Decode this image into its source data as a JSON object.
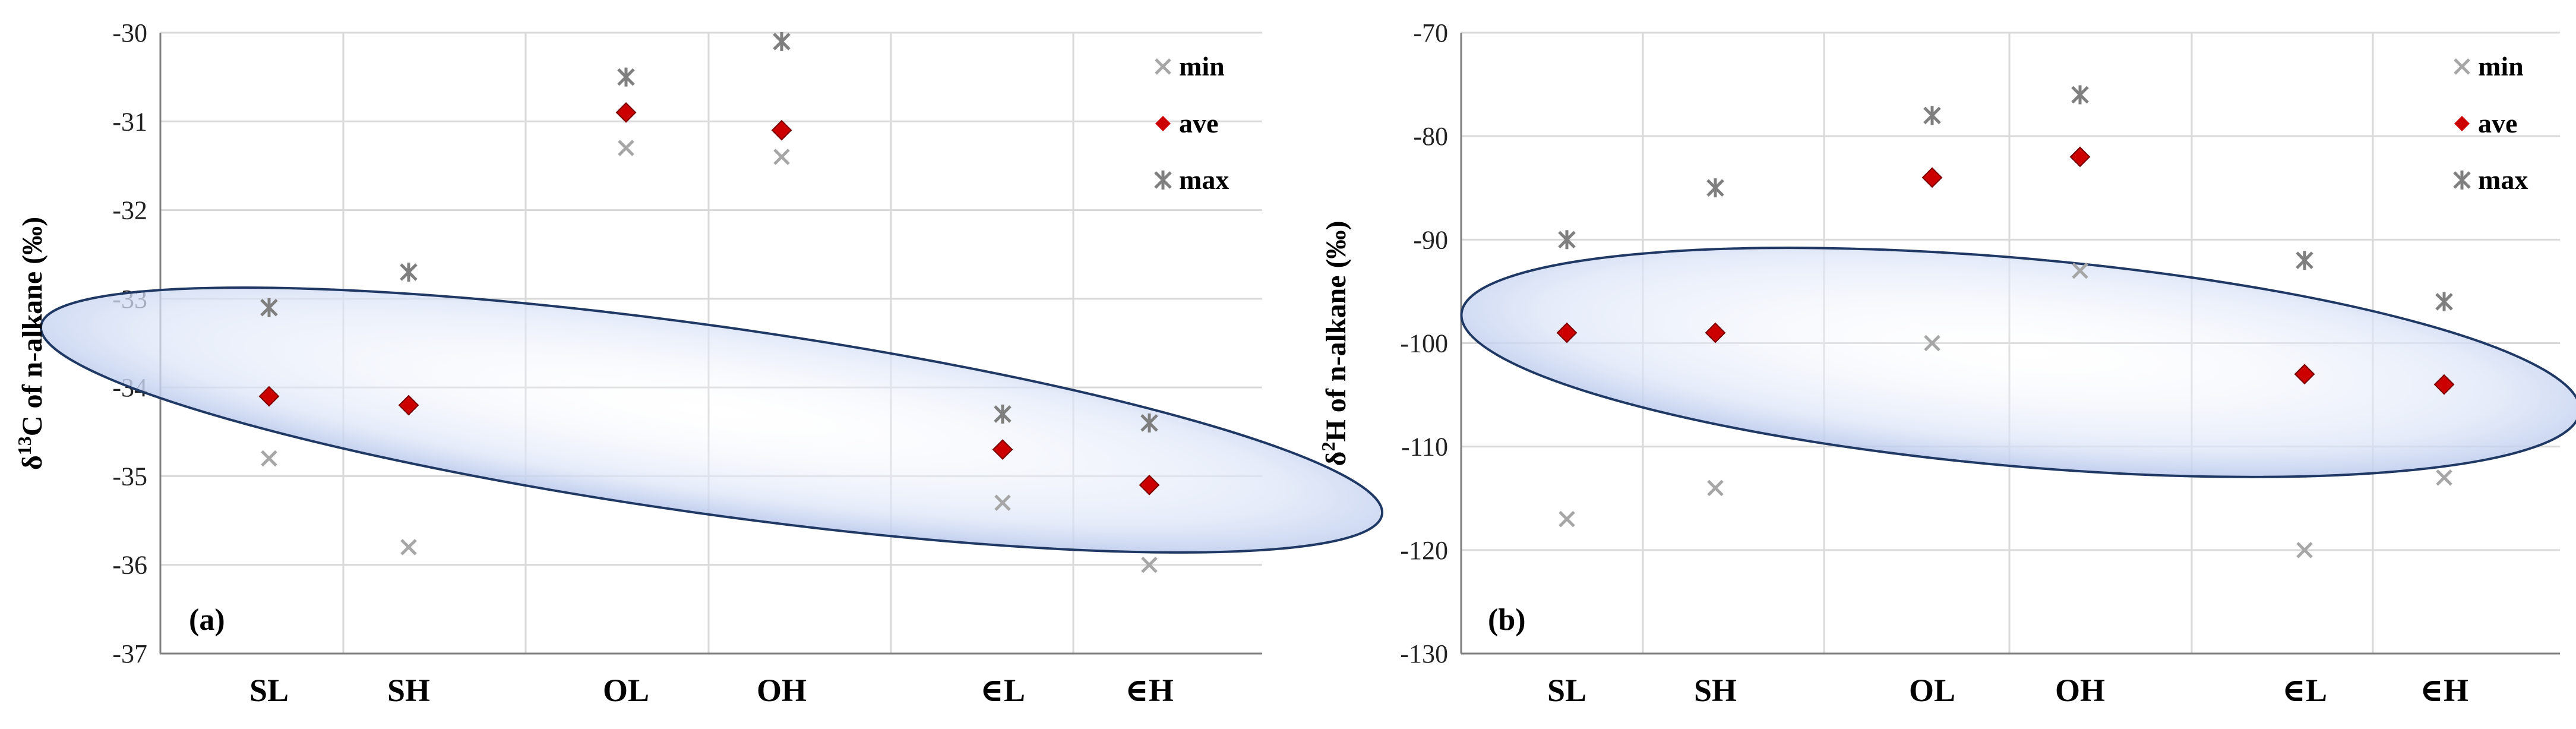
{
  "chart_data": [
    {
      "type": "scatter",
      "panel_label": "(a)",
      "ylabel": "δ13C of n-alkane (‰)",
      "ylabel_parts": {
        "pre": "δ",
        "sup": "13",
        "post": "C of n-alkane (‰)"
      },
      "ylim": [
        -37,
        -30
      ],
      "yticks": [
        "-30",
        "-31",
        "-32",
        "-33",
        "-34",
        "-35",
        "-36",
        "-37"
      ],
      "ytick_values": [
        -30,
        -31,
        -32,
        -33,
        -34,
        -35,
        -36,
        -37
      ],
      "categories": [
        "SL",
        "SH",
        "OL",
        "OH",
        "∈L",
        "∈H"
      ],
      "series": [
        {
          "name": "min",
          "values": [
            -34.8,
            -35.8,
            -31.3,
            -31.4,
            -35.3,
            -36.0
          ]
        },
        {
          "name": "ave",
          "values": [
            -34.1,
            -34.2,
            -30.9,
            -31.1,
            -34.7,
            -35.1
          ]
        },
        {
          "name": "max",
          "values": [
            -33.1,
            -32.7,
            -30.5,
            -30.1,
            -34.3,
            -34.4
          ]
        }
      ],
      "legend": [
        "min",
        "ave",
        "max"
      ],
      "colors": {
        "min": "#a6a6a6",
        "ave": "#cc0000",
        "max": "#7f7f7f",
        "ellipse": "#b8c8ee"
      }
    },
    {
      "type": "scatter",
      "panel_label": "(b)",
      "ylabel": "δ2H of n-alkane (‰)",
      "ylabel_parts": {
        "pre": "δ",
        "sup": "2",
        "post": "H of n-alkane (‰)"
      },
      "ylim": [
        -130,
        -70
      ],
      "yticks": [
        "-70",
        "-80",
        "-90",
        "-100",
        "-110",
        "-120",
        "-130"
      ],
      "ytick_values": [
        -70,
        -80,
        -90,
        -100,
        -110,
        -120,
        -130
      ],
      "categories": [
        "SL",
        "SH",
        "OL",
        "OH",
        "∈L",
        "∈H"
      ],
      "series": [
        {
          "name": "min",
          "values": [
            -117,
            -114,
            -100,
            -93,
            -120,
            -113
          ]
        },
        {
          "name": "ave",
          "values": [
            -99,
            -99,
            -84,
            -82,
            -103,
            -104
          ]
        },
        {
          "name": "max",
          "values": [
            -90,
            -85,
            -78,
            -76,
            -92,
            -96
          ]
        }
      ],
      "legend": [
        "min",
        "ave",
        "max"
      ],
      "colors": {
        "min": "#a6a6a6",
        "ave": "#cc0000",
        "max": "#7f7f7f",
        "ellipse": "#b8c8ee"
      }
    }
  ]
}
